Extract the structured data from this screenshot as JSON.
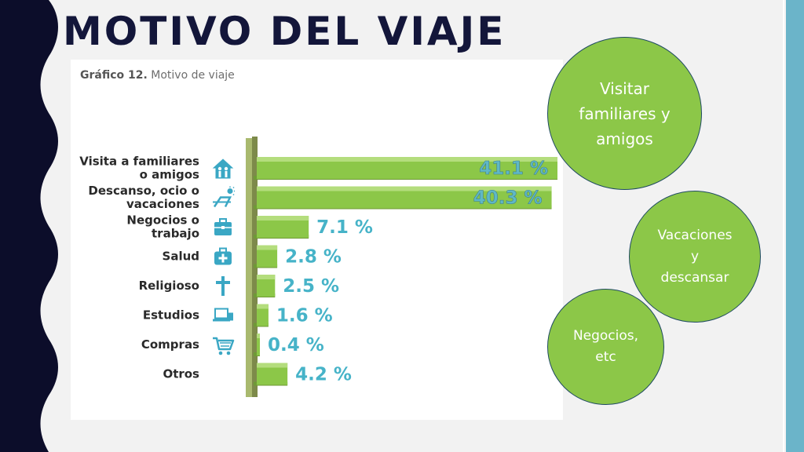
{
  "slide": {
    "title": "MOTIVO DEL VIAJE"
  },
  "colors": {
    "title": "#13163a",
    "left_band": "#0c0d2a",
    "right_band": "#6bb4c9",
    "bar": "#8cc748",
    "value_text": "#46b3c8",
    "bubble": "#8cc748"
  },
  "chart_data": {
    "type": "bar",
    "orientation": "horizontal",
    "title": "Gráfico 12. Motivo de viaje",
    "title_parts": {
      "number": "Gráfico 12.",
      "text": "Motivo de viaje"
    },
    "categories": [
      "Visita a familiares o amigos",
      "Descanso, ocio o vacaciones",
      "Negocios o trabajo",
      "Salud",
      "Religioso",
      "Estudios",
      "Compras",
      "Otros"
    ],
    "category_lines": [
      [
        "Visita a familiares",
        "o amigos"
      ],
      [
        "Descanso, ocio o",
        "vacaciones"
      ],
      [
        "Negocios o",
        "trabajo"
      ],
      [
        "Salud"
      ],
      [
        "Religioso"
      ],
      [
        "Estudios"
      ],
      [
        "Compras"
      ],
      [
        "Otros"
      ]
    ],
    "icons": [
      "family-house-icon",
      "beach-chair-icon",
      "briefcase-icon",
      "medical-kit-icon",
      "cross-icon",
      "laptop-icon",
      "shopping-cart-icon",
      ""
    ],
    "values": [
      41.1,
      40.3,
      7.1,
      2.8,
      2.5,
      1.6,
      0.4,
      4.2
    ],
    "value_labels": [
      "41.1 %",
      "40.3 %",
      "7.1 %",
      "2.8  %",
      "2.5  %",
      "1.6  %",
      "0.4  %",
      "4.2 %"
    ],
    "xlim": [
      0,
      41.1
    ],
    "unit": "%",
    "grid": false,
    "legend": "none"
  },
  "bubbles": [
    {
      "text": "Visitar\nfamiliares y\namigos"
    },
    {
      "text": "Vacaciones\ny\ndescansar"
    },
    {
      "text": "Negocios,\netc"
    }
  ]
}
